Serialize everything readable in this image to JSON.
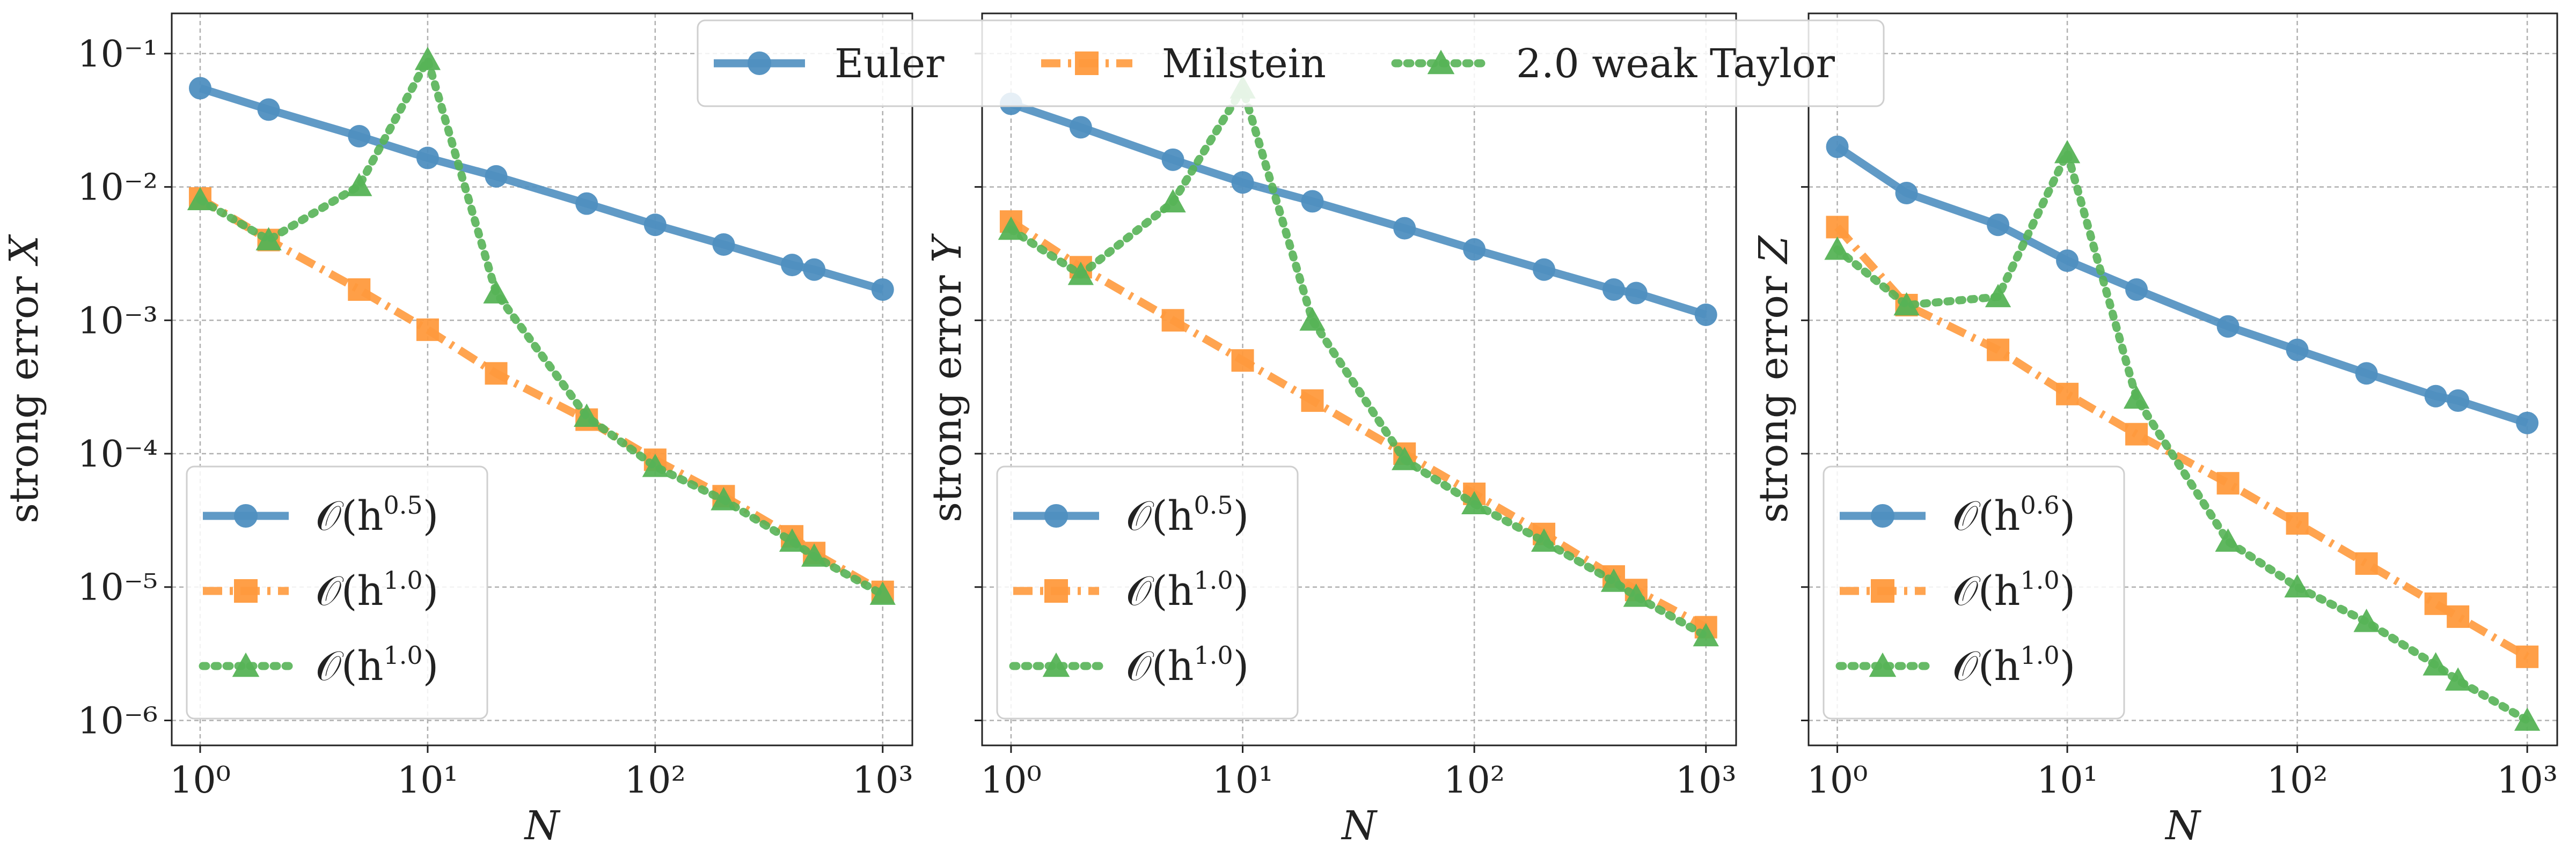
{
  "chart_data": [
    {
      "type": "line",
      "x_scale": "log",
      "y_scale": "log",
      "xlabel": "N",
      "ylabel": "strong error",
      "ylabel_var": "X",
      "xlim": [
        0.75,
        1350
      ],
      "ylim": [
        6.5e-07,
        0.2
      ],
      "x_ticks": [
        {
          "value": 1,
          "label": "10⁰"
        },
        {
          "value": 10,
          "label": "10¹"
        },
        {
          "value": 100,
          "label": "10²"
        },
        {
          "value": 1000,
          "label": "10³"
        }
      ],
      "y_ticks": [
        {
          "value": 0.1,
          "label": "10⁻¹"
        },
        {
          "value": 0.01,
          "label": "10⁻²"
        },
        {
          "value": 0.001,
          "label": "10⁻³"
        },
        {
          "value": 0.0001,
          "label": "10⁻⁴"
        },
        {
          "value": 1e-05,
          "label": "10⁻⁵"
        },
        {
          "value": 1e-06,
          "label": "10⁻⁶"
        }
      ],
      "show_y_tick_labels": true,
      "grid": true,
      "legend_position": "lower-left",
      "x": [
        1,
        2,
        5,
        10,
        20,
        50,
        100,
        200,
        400,
        500,
        1000
      ],
      "series": [
        {
          "name": "Euler",
          "legend_label": "𝒪(h",
          "rate": "0.5",
          "values": [
            0.055,
            0.038,
            0.024,
            0.0165,
            0.012,
            0.0075,
            0.0052,
            0.0037,
            0.0026,
            0.0024,
            0.0017
          ]
        },
        {
          "name": "Milstein",
          "legend_label": "𝒪(h",
          "rate": "1.0",
          "values": [
            0.0082,
            0.004,
            0.0017,
            0.00085,
            0.0004,
            0.00018,
            9e-05,
            4.8e-05,
            2.4e-05,
            1.8e-05,
            9.2e-06
          ]
        },
        {
          "name": "2.0 weak Taylor",
          "legend_label": "𝒪(h",
          "rate": "1.0",
          "values": [
            0.008,
            0.004,
            0.0102,
            0.09,
            0.0016,
            0.00019,
            8e-05,
            4.5e-05,
            2.2e-05,
            1.7e-05,
            8.8e-06
          ]
        }
      ]
    },
    {
      "type": "line",
      "x_scale": "log",
      "y_scale": "log",
      "xlabel": "N",
      "ylabel": "strong error",
      "ylabel_var": "Y",
      "xlim": [
        0.75,
        1350
      ],
      "ylim": [
        6.5e-07,
        0.2
      ],
      "x_ticks": [
        {
          "value": 1,
          "label": "10⁰"
        },
        {
          "value": 10,
          "label": "10¹"
        },
        {
          "value": 100,
          "label": "10²"
        },
        {
          "value": 1000,
          "label": "10³"
        }
      ],
      "y_ticks": [
        {
          "value": 0.1,
          "label": "10⁻¹"
        },
        {
          "value": 0.01,
          "label": "10⁻²"
        },
        {
          "value": 0.001,
          "label": "10⁻³"
        },
        {
          "value": 0.0001,
          "label": "10⁻⁴"
        },
        {
          "value": 1e-05,
          "label": "10⁻⁵"
        },
        {
          "value": 1e-06,
          "label": "10⁻⁶"
        }
      ],
      "show_y_tick_labels": false,
      "grid": true,
      "legend_position": "lower-left",
      "x": [
        1,
        2,
        5,
        10,
        20,
        50,
        100,
        200,
        400,
        500,
        1000
      ],
      "series": [
        {
          "name": "Euler",
          "legend_label": "𝒪(h",
          "rate": "0.5",
          "values": [
            0.042,
            0.028,
            0.016,
            0.0108,
            0.0078,
            0.0049,
            0.0034,
            0.0024,
            0.0017,
            0.0016,
            0.0011
          ]
        },
        {
          "name": "Milstein",
          "legend_label": "𝒪(h",
          "rate": "1.0",
          "values": [
            0.0055,
            0.0025,
            0.001,
            0.0005,
            0.00025,
            0.0001,
            5e-05,
            2.5e-05,
            1.2e-05,
            9.5e-06,
            5e-06
          ]
        },
        {
          "name": "2.0 weak Taylor",
          "legend_label": "𝒪(h",
          "rate": "1.0",
          "values": [
            0.0048,
            0.0022,
            0.0077,
            0.055,
            0.001,
            9e-05,
            4.2e-05,
            2.2e-05,
            1.1e-05,
            8.5e-06,
            4.3e-06
          ]
        }
      ]
    },
    {
      "type": "line",
      "x_scale": "log",
      "y_scale": "log",
      "xlabel": "N",
      "ylabel": "strong error",
      "ylabel_var": "Z",
      "xlim": [
        0.75,
        1350
      ],
      "ylim": [
        6.5e-07,
        0.2
      ],
      "x_ticks": [
        {
          "value": 1,
          "label": "10⁰"
        },
        {
          "value": 10,
          "label": "10¹"
        },
        {
          "value": 100,
          "label": "10²"
        },
        {
          "value": 1000,
          "label": "10³"
        }
      ],
      "y_ticks": [
        {
          "value": 0.1,
          "label": "10⁻¹"
        },
        {
          "value": 0.01,
          "label": "10⁻²"
        },
        {
          "value": 0.001,
          "label": "10⁻³"
        },
        {
          "value": 0.0001,
          "label": "10⁻⁴"
        },
        {
          "value": 1e-05,
          "label": "10⁻⁵"
        },
        {
          "value": 1e-06,
          "label": "10⁻⁶"
        }
      ],
      "show_y_tick_labels": false,
      "grid": true,
      "legend_position": "lower-left",
      "x": [
        1,
        2,
        5,
        10,
        20,
        50,
        100,
        200,
        400,
        500,
        1000
      ],
      "series": [
        {
          "name": "Euler",
          "legend_label": "𝒪(h",
          "rate": "0.6",
          "values": [
            0.02,
            0.009,
            0.0052,
            0.0028,
            0.0017,
            0.0009,
            0.0006,
            0.0004,
            0.00027,
            0.00025,
            0.00017
          ]
        },
        {
          "name": "Milstein",
          "legend_label": "𝒪(h",
          "rate": "1.0",
          "values": [
            0.005,
            0.0013,
            0.0006,
            0.00028,
            0.00014,
            6e-05,
            3e-05,
            1.5e-05,
            7.5e-06,
            6e-06,
            3e-06
          ]
        },
        {
          "name": "2.0 weak Taylor",
          "legend_label": "𝒪(h",
          "rate": "1.0",
          "values": [
            0.0034,
            0.0013,
            0.0015,
            0.018,
            0.00026,
            2.2e-05,
            1e-05,
            5.5e-06,
            2.6e-06,
            2e-06,
            1e-06
          ]
        }
      ]
    }
  ],
  "top_legend": {
    "entries": [
      "Euler",
      "Milstein",
      "2.0 weak Taylor"
    ]
  },
  "colors": {
    "Euler": "#4f8fc0",
    "Milstein": "#ff9a3d",
    "2.0 weak Taylor": "#56b356"
  },
  "styles": {
    "Euler": {
      "dash": "solid",
      "marker": "circle"
    },
    "Milstein": {
      "dash": "dashdot",
      "marker": "square"
    },
    "2.0 weak Taylor": {
      "dash": "dotted",
      "marker": "triangle"
    }
  }
}
